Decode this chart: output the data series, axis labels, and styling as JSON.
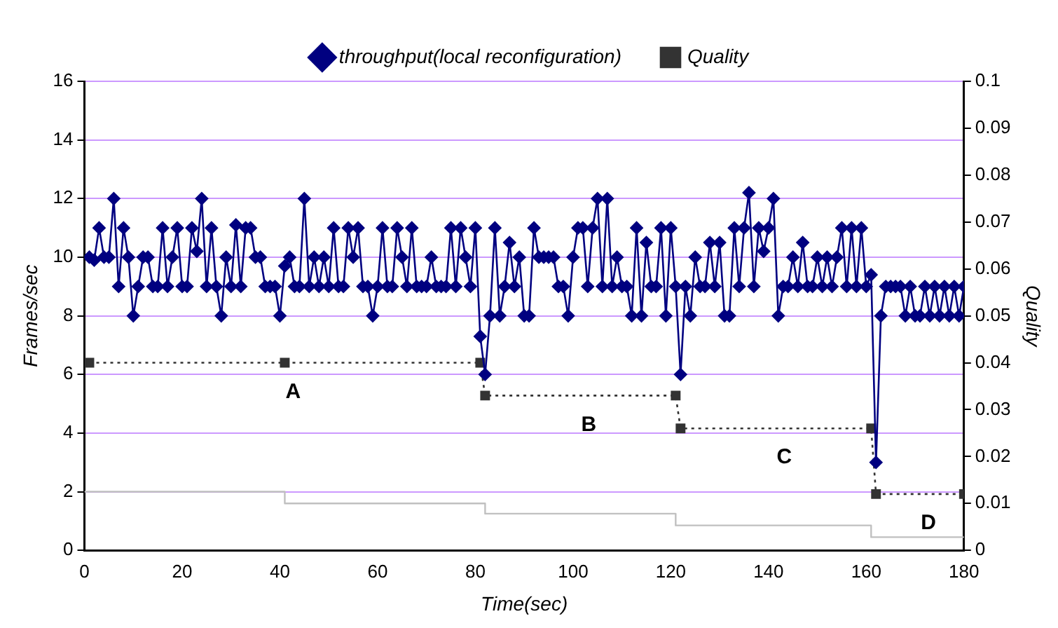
{
  "chart_data": {
    "type": "line",
    "xlabel": "Time(sec)",
    "ylabel": "Frames/sec",
    "y2label": "Quality",
    "xlim": [
      0,
      180
    ],
    "xticks": [
      0,
      20,
      40,
      60,
      80,
      100,
      120,
      140,
      160,
      180
    ],
    "ylim": [
      0,
      16
    ],
    "yticks": [
      0,
      2,
      4,
      6,
      8,
      10,
      12,
      14,
      16
    ],
    "y2lim": [
      0,
      0.1
    ],
    "y2ticks": [
      0,
      0.01,
      0.02,
      0.03,
      0.04,
      0.05,
      0.06,
      0.07,
      0.08,
      0.09,
      0.1
    ],
    "grid": "y",
    "legend": "top",
    "annotations": [
      "A",
      "B",
      "C",
      "D"
    ],
    "series": [
      {
        "name": "throughput(local reconfiguration)",
        "color": "#000080",
        "marker": "diamond",
        "line_style": "solid",
        "x": [
          1,
          2,
          3,
          4,
          5,
          6,
          7,
          8,
          9,
          10,
          11,
          12,
          13,
          14,
          15,
          16,
          17,
          18,
          19,
          20,
          21,
          22,
          23,
          24,
          25,
          26,
          27,
          28,
          29,
          30,
          31,
          32,
          33,
          34,
          35,
          36,
          37,
          38,
          39,
          40,
          41,
          42,
          43,
          44,
          45,
          46,
          47,
          48,
          49,
          50,
          51,
          52,
          53,
          54,
          55,
          56,
          57,
          58,
          59,
          60,
          61,
          62,
          63,
          64,
          65,
          66,
          67,
          68,
          69,
          70,
          71,
          72,
          73,
          74,
          75,
          76,
          77,
          78,
          79,
          80,
          81,
          82,
          83,
          84,
          85,
          86,
          87,
          88,
          89,
          90,
          91,
          92,
          93,
          94,
          95,
          96,
          97,
          98,
          99,
          100,
          101,
          102,
          103,
          104,
          105,
          106,
          107,
          108,
          109,
          110,
          111,
          112,
          113,
          114,
          115,
          116,
          117,
          118,
          119,
          120,
          121,
          122,
          123,
          124,
          125,
          126,
          127,
          128,
          129,
          130,
          131,
          132,
          133,
          134,
          135,
          136,
          137,
          138,
          139,
          140,
          141,
          142,
          143,
          144,
          145,
          146,
          147,
          148,
          149,
          150,
          151,
          152,
          153,
          154,
          155,
          156,
          157,
          158,
          159,
          160,
          161,
          162,
          163,
          164,
          165,
          166,
          167,
          168,
          169,
          170,
          171,
          172,
          173,
          174,
          175,
          176,
          177,
          178,
          179,
          180
        ],
        "values": [
          10,
          9.9,
          11,
          10,
          10,
          12,
          9,
          11,
          10,
          8,
          9,
          10,
          10,
          9,
          9,
          11,
          9,
          10,
          11,
          9,
          9,
          11,
          10.2,
          12,
          9,
          11,
          9,
          8,
          10,
          9,
          11.1,
          9,
          11,
          11,
          10,
          10,
          9,
          9,
          9,
          8,
          9.7,
          10,
          9,
          9,
          12,
          9,
          10,
          9,
          10,
          9,
          11,
          9,
          9,
          11,
          10,
          11,
          9,
          9,
          8,
          9,
          11,
          9,
          9,
          11,
          10,
          9,
          11,
          9,
          9,
          9,
          10,
          9,
          9,
          9,
          11,
          9,
          11,
          10,
          9,
          11,
          7.3,
          6,
          8,
          11,
          8,
          9,
          10.5,
          9,
          10,
          8,
          8,
          11,
          10,
          10,
          10,
          10,
          9,
          9,
          8,
          10,
          11,
          11,
          9,
          11,
          12,
          9,
          12,
          9,
          10,
          9,
          9,
          8,
          11,
          8,
          10.5,
          9,
          9,
          11,
          8,
          11,
          9,
          6,
          9,
          8,
          10,
          9,
          9,
          10.5,
          9,
          10.5,
          8,
          8,
          11,
          9,
          11,
          12.2,
          9,
          11,
          10.2,
          11,
          12,
          8,
          9,
          9,
          10,
          9,
          10.5,
          9,
          9,
          10,
          9,
          10,
          9,
          10,
          11,
          9,
          11,
          9,
          11,
          9,
          9.4,
          3,
          8,
          9,
          9,
          9,
          9,
          8,
          9,
          8,
          8,
          9,
          8,
          9,
          8,
          9,
          8,
          9,
          8,
          9
        ]
      },
      {
        "name": "Quality",
        "axis": "y2",
        "color": "#333333",
        "marker": "square",
        "line_style": "dotted",
        "x": [
          1,
          41,
          81,
          82,
          121,
          122,
          161,
          162,
          180
        ],
        "values": [
          0.04,
          0.04,
          0.04,
          0.033,
          0.033,
          0.026,
          0.026,
          0.012,
          0.012
        ]
      },
      {
        "type": "step",
        "color": "#c0c0c0",
        "marker": "none",
        "line_style": "solid",
        "x": [
          0,
          41,
          82,
          121,
          161,
          180
        ],
        "values": [
          2,
          1.6,
          1.25,
          0.85,
          0.45,
          0.45
        ]
      }
    ]
  }
}
